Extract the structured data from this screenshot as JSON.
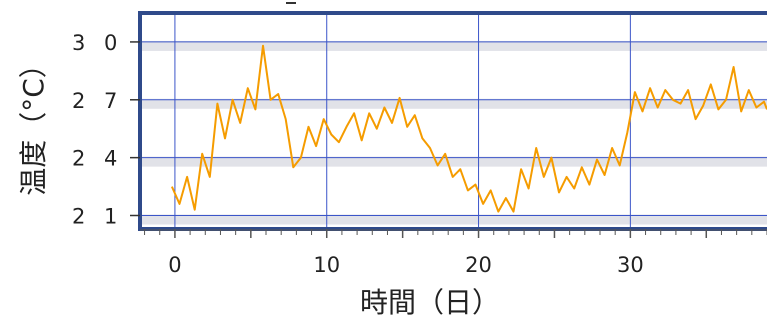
{
  "chart_data": {
    "type": "line",
    "xlabel": "時間（日）",
    "ylabel": "温度（°C）",
    "xlim": [
      -2.3,
      39
    ],
    "ylim": [
      20.3,
      31.5
    ],
    "x_ticks": [
      0,
      10,
      20,
      30
    ],
    "x_tick_labels": [
      "0",
      "10",
      "20",
      "30"
    ],
    "y_ticks": [
      21,
      24,
      27,
      30
    ],
    "y_tick_labels": [
      "2 1",
      "2 4",
      "2 7",
      "3 0"
    ],
    "grid": true,
    "colors": {
      "series": "#f59c00",
      "frame": "#2f4a8a",
      "grid": "#3b55c9",
      "band": "#c8cbd6"
    },
    "series": [
      {
        "x": [
          -0.2,
          0.3,
          0.8,
          1.3,
          1.8,
          2.3,
          2.8,
          3.3,
          3.8,
          4.3,
          4.8,
          5.3,
          5.8,
          6.3,
          6.8,
          7.3,
          7.8,
          8.3,
          8.8,
          9.3,
          9.8,
          10.3,
          10.8,
          11.3,
          11.8,
          12.3,
          12.8,
          13.3,
          13.8,
          14.3,
          14.8,
          15.3,
          15.8,
          16.3,
          16.8,
          17.3,
          17.8,
          18.3,
          18.8,
          19.3,
          19.8,
          20.3,
          20.8,
          21.3,
          21.8,
          22.3,
          22.8,
          23.3,
          23.8,
          24.3,
          24.8,
          25.3,
          25.8,
          26.3,
          26.8,
          27.3,
          27.8,
          28.3,
          28.8,
          29.3,
          29.8,
          30.3,
          30.8,
          31.3,
          31.8,
          32.3,
          32.8,
          33.3,
          33.8,
          34.3,
          34.8,
          35.3,
          35.8,
          36.3,
          36.8,
          37.3,
          37.8,
          38.3,
          38.8,
          39.0
        ],
        "y": [
          22.5,
          21.6,
          23.0,
          21.3,
          24.2,
          23.0,
          26.8,
          25.0,
          27.0,
          25.8,
          27.6,
          26.5,
          29.8,
          27.0,
          27.3,
          26.0,
          23.5,
          24.0,
          25.6,
          24.6,
          26.0,
          25.2,
          24.8,
          25.6,
          26.3,
          24.9,
          26.3,
          25.5,
          26.6,
          25.8,
          27.1,
          25.6,
          26.2,
          25.0,
          24.5,
          23.6,
          24.2,
          23.0,
          23.4,
          22.3,
          22.6,
          21.6,
          22.3,
          21.2,
          21.9,
          21.2,
          23.4,
          22.4,
          24.5,
          23.0,
          24.0,
          22.2,
          23.0,
          22.4,
          23.5,
          22.6,
          23.9,
          23.1,
          24.5,
          23.6,
          25.3,
          27.4,
          26.4,
          27.6,
          26.6,
          27.5,
          27.0,
          26.8,
          27.5,
          26.0,
          26.7,
          27.8,
          26.5,
          27.0,
          28.7,
          26.4,
          27.5,
          26.6,
          26.9,
          26.5
        ]
      }
    ]
  }
}
